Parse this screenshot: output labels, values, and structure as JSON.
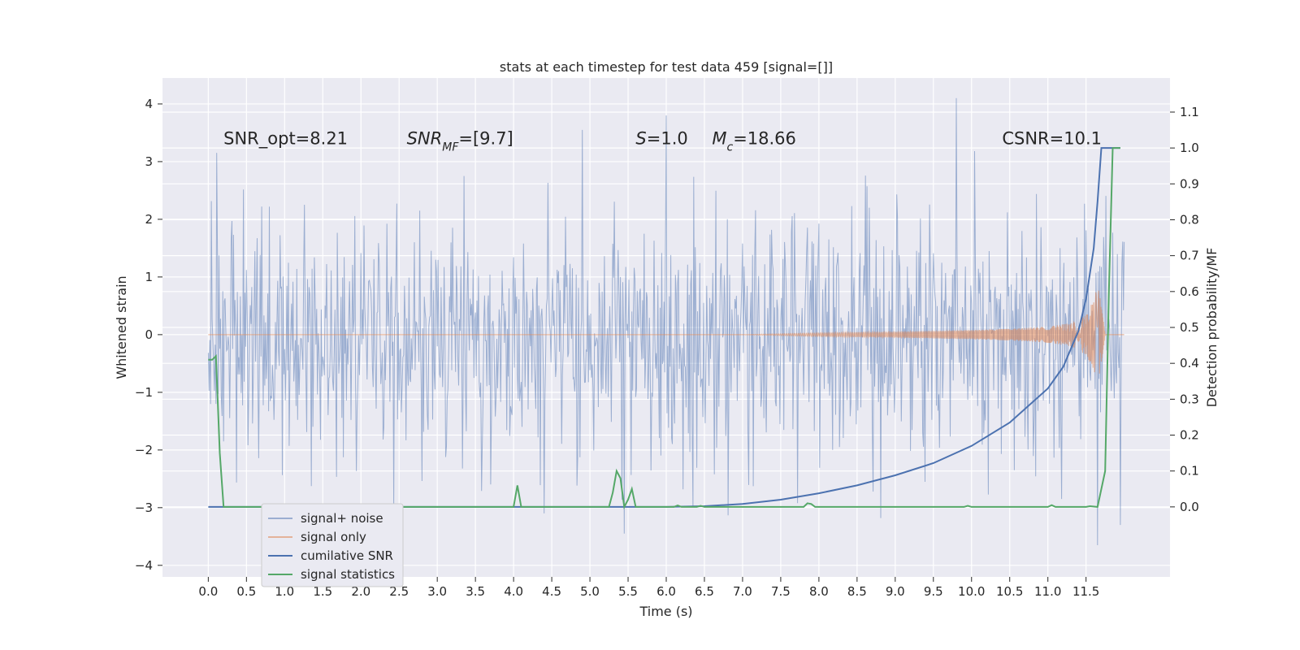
{
  "chart_data": {
    "type": "line",
    "title": "stats at each timestep for test data 459 [signal=[]]",
    "xlabel": "Time (s)",
    "ylabel_left": "Whitened strain",
    "ylabel_right": "Detection probability/MF",
    "xlim": [
      -0.6,
      12.6
    ],
    "ylim_left": [
      -4.2,
      4.45
    ],
    "ylim_right": [
      -0.195,
      1.195
    ],
    "x_ticks": [
      0.0,
      0.5,
      1.0,
      1.5,
      2.0,
      2.5,
      3.0,
      3.5,
      4.0,
      4.5,
      5.0,
      5.5,
      6.0,
      6.5,
      7.0,
      7.5,
      8.0,
      8.5,
      9.0,
      9.5,
      10.0,
      10.5,
      11.0,
      11.5
    ],
    "x_tick_labels": [
      "0.0",
      "0.5",
      "1.0",
      "1.5",
      "2.0",
      "2.5",
      "3.0",
      "3.5",
      "4.0",
      "4.5",
      "5.0",
      "5.5",
      "6.0",
      "6.5",
      "7.0",
      "7.5",
      "8.0",
      "8.5",
      "9.0",
      "9.5",
      "10.0",
      "10.5",
      "11.0",
      "11.5"
    ],
    "y_left_ticks": [
      -4,
      -3,
      -2,
      -1,
      0,
      1,
      2,
      3,
      4
    ],
    "y_left_tick_labels": [
      "−4",
      "−3",
      "−2",
      "−1",
      "0",
      "1",
      "2",
      "3",
      "4"
    ],
    "y_right_ticks": [
      0.0,
      0.1,
      0.2,
      0.3,
      0.4,
      0.5,
      0.6,
      0.7,
      0.8,
      0.9,
      1.0,
      1.1
    ],
    "y_right_tick_labels": [
      "0.0",
      "0.1",
      "0.2",
      "0.3",
      "0.4",
      "0.5",
      "0.6",
      "0.7",
      "0.8",
      "0.9",
      "1.0",
      "1.1"
    ],
    "grid": true,
    "legend_placement": "lower-left",
    "annotations": [
      {
        "text": "SNR_opt=8.21",
        "x": 0.2,
        "y": 3.3
      },
      {
        "text": "SNR_MF=[9.7]",
        "x": 2.6,
        "y": 3.3
      },
      {
        "text": "S=1.0",
        "x": 5.6,
        "y": 3.3
      },
      {
        "text": "M_c=18.66",
        "x": 6.6,
        "y": 3.3
      },
      {
        "text": "CSNR=10.1",
        "x": 10.4,
        "y": 3.3
      }
    ],
    "series": [
      {
        "name": "signal+ noise",
        "axis": "left",
        "color": "#4c72b0",
        "opacity": 0.5,
        "description_note": "noisy strain time series, roughly within -2.9 to 3.5 with spikes up to 4.1 near t=9.8",
        "x_range": [
          0.0,
          12.0
        ],
        "sample_spacing": 0.01,
        "envelope_lower": -2.6,
        "envelope_upper": 2.8,
        "peaks": [
          [
            6.0,
            3.8
          ],
          [
            9.8,
            4.1
          ],
          [
            4.9,
            3.55
          ],
          [
            11.65,
            -3.65
          ],
          [
            5.45,
            -3.45
          ],
          [
            11.95,
            -3.3
          ]
        ]
      },
      {
        "name": "signal only",
        "axis": "left",
        "color": "#dd8452",
        "opacity": 0.55,
        "x": [
          0.0,
          7.0,
          8.0,
          9.0,
          10.0,
          10.5,
          11.0,
          11.3,
          11.5,
          11.6,
          11.65,
          11.7,
          11.75,
          12.0
        ],
        "amplitude": [
          0.0,
          0.0,
          0.03,
          0.05,
          0.08,
          0.1,
          0.14,
          0.2,
          0.35,
          0.6,
          0.85,
          0.55,
          0.0,
          0.0
        ]
      },
      {
        "name": "cumilative SNR",
        "axis": "right",
        "color": "#4c72b0",
        "x": [
          0.0,
          6.0,
          6.5,
          7.0,
          7.5,
          8.0,
          8.5,
          9.0,
          9.5,
          10.0,
          10.5,
          11.0,
          11.2,
          11.4,
          11.5,
          11.6,
          11.65,
          11.7,
          11.95
        ],
        "values": [
          0.0,
          0.0,
          0.002,
          0.008,
          0.02,
          0.038,
          0.06,
          0.088,
          0.122,
          0.17,
          0.235,
          0.33,
          0.39,
          0.49,
          0.58,
          0.72,
          0.85,
          1.0,
          1.0
        ]
      },
      {
        "name": "signal statistics",
        "axis": "right",
        "color": "#55a868",
        "x": [
          0.0,
          0.05,
          0.1,
          0.15,
          0.2,
          3.9,
          4.0,
          4.05,
          4.1,
          4.15,
          5.2,
          5.25,
          5.3,
          5.35,
          5.4,
          5.45,
          5.5,
          5.55,
          5.6,
          5.65,
          5.7,
          6.1,
          6.15,
          6.2,
          6.4,
          6.45,
          6.5,
          7.8,
          7.85,
          7.9,
          7.95,
          9.9,
          9.95,
          10.0,
          11.0,
          11.05,
          11.1,
          11.5,
          11.55,
          11.65,
          11.75,
          11.8,
          11.85,
          11.95
        ],
        "values": [
          0.41,
          0.41,
          0.42,
          0.15,
          0.0,
          0.0,
          0.0,
          0.06,
          0.0,
          0.0,
          0.0,
          0.0,
          0.04,
          0.1,
          0.08,
          0.0,
          0.02,
          0.05,
          0.0,
          0.0,
          0.0,
          0.0,
          0.004,
          0.0,
          0.0,
          0.003,
          0.0,
          0.0,
          0.01,
          0.008,
          0.0,
          0.0,
          0.003,
          0.0,
          0.0,
          0.005,
          0.0,
          0.0,
          0.002,
          0.0,
          0.1,
          0.6,
          1.0,
          1.0
        ]
      }
    ],
    "legend": [
      "signal+ noise",
      "signal only",
      "cumilative SNR",
      "signal statistics"
    ]
  }
}
